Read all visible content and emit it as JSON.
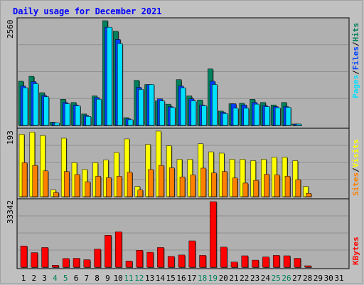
{
  "title": "Daily usage for December 2021",
  "panel_top": {
    "ymax_label": "2560",
    "right_legend": [
      "Pages",
      "/",
      "Files",
      "/",
      "Hits"
    ]
  },
  "panel_mid": {
    "ymax_label": "193",
    "right_legend": [
      "Sites",
      "/",
      "Visits"
    ]
  },
  "panel_bot": {
    "ymax_label": "33342",
    "right_legend": [
      "KBytes"
    ]
  },
  "colors": {
    "hits": "#00805c",
    "files": "#0040ff",
    "pages": "#00e0ff",
    "visits": "#ffff00",
    "sites": "#ff8000",
    "kbytes": "#ff0000",
    "weekend": "#00805c",
    "weekday": "#000000",
    "title": "#0000ff",
    "background": "#c0c0c0",
    "panel": "#b0b0b0"
  },
  "chart_data": [
    {
      "type": "bar",
      "title": "Daily usage for December 2021",
      "categories": [
        "1",
        "2",
        "3",
        "4",
        "5",
        "6",
        "7",
        "8",
        "9",
        "10",
        "11",
        "12",
        "13",
        "14",
        "15",
        "16",
        "17",
        "18",
        "19",
        "20",
        "21",
        "22",
        "23",
        "24",
        "25",
        "26",
        "27",
        "28",
        "29",
        "30",
        "31"
      ],
      "weekend_days": [
        "4",
        "5",
        "11",
        "12",
        "18",
        "19",
        "25",
        "26"
      ],
      "ylim": [
        0,
        2560
      ],
      "series": [
        {
          "name": "Hits",
          "values": [
            1080,
            1200,
            800,
            80,
            640,
            560,
            280,
            720,
            2560,
            2300,
            190,
            1100,
            1000,
            600,
            520,
            1120,
            720,
            620,
            1380,
            350,
            530,
            540,
            640,
            560,
            500,
            560,
            20,
            0,
            0,
            0,
            0
          ]
        },
        {
          "name": "Files",
          "values": [
            960,
            1070,
            730,
            60,
            560,
            500,
            240,
            680,
            2400,
            2100,
            160,
            930,
            1000,
            650,
            460,
            960,
            650,
            500,
            1080,
            320,
            530,
            500,
            560,
            480,
            460,
            460,
            10,
            0,
            0,
            0,
            0
          ]
        },
        {
          "name": "Pages",
          "values": [
            920,
            1020,
            700,
            60,
            530,
            480,
            220,
            640,
            2400,
            2000,
            140,
            880,
            1000,
            600,
            440,
            920,
            600,
            480,
            1000,
            290,
            420,
            420,
            520,
            460,
            430,
            440,
            10,
            0,
            0,
            0,
            0
          ]
        }
      ]
    },
    {
      "type": "bar",
      "categories": [
        "1",
        "2",
        "3",
        "4",
        "5",
        "6",
        "7",
        "8",
        "9",
        "10",
        "11",
        "12",
        "13",
        "14",
        "15",
        "16",
        "17",
        "18",
        "19",
        "20",
        "21",
        "22",
        "23",
        "24",
        "25",
        "26",
        "27",
        "28",
        "29",
        "30",
        "31"
      ],
      "ylim": [
        0,
        193
      ],
      "series": [
        {
          "name": "Visits",
          "values": [
            184,
            190,
            180,
            20,
            172,
            100,
            80,
            100,
            108,
            130,
            170,
            30,
            154,
            193,
            150,
            110,
            110,
            156,
            132,
            128,
            110,
            110,
            106,
            110,
            116,
            116,
            106,
            30,
            0,
            0,
            0
          ]
        },
        {
          "name": "Sites",
          "values": [
            100,
            92,
            76,
            12,
            74,
            65,
            44,
            60,
            56,
            60,
            72,
            20,
            80,
            92,
            85,
            58,
            64,
            84,
            70,
            74,
            55,
            40,
            48,
            66,
            64,
            60,
            50,
            10,
            0,
            0,
            0
          ]
        }
      ]
    },
    {
      "type": "bar",
      "categories": [
        "1",
        "2",
        "3",
        "4",
        "5",
        "6",
        "7",
        "8",
        "9",
        "10",
        "11",
        "12",
        "13",
        "14",
        "15",
        "16",
        "17",
        "18",
        "19",
        "20",
        "21",
        "22",
        "23",
        "24",
        "25",
        "26",
        "27",
        "28",
        "29",
        "30",
        "31"
      ],
      "ylim": [
        0,
        33342
      ],
      "series": [
        {
          "name": "KBytes",
          "values": [
            10800,
            7400,
            10000,
            1000,
            4400,
            4500,
            3800,
            9200,
            16200,
            18000,
            3100,
            8600,
            7600,
            10000,
            5500,
            6200,
            13400,
            6000,
            33342,
            10200,
            2600,
            5800,
            3600,
            5200,
            6000,
            5800,
            4500,
            550,
            0,
            0,
            0
          ]
        }
      ]
    }
  ]
}
